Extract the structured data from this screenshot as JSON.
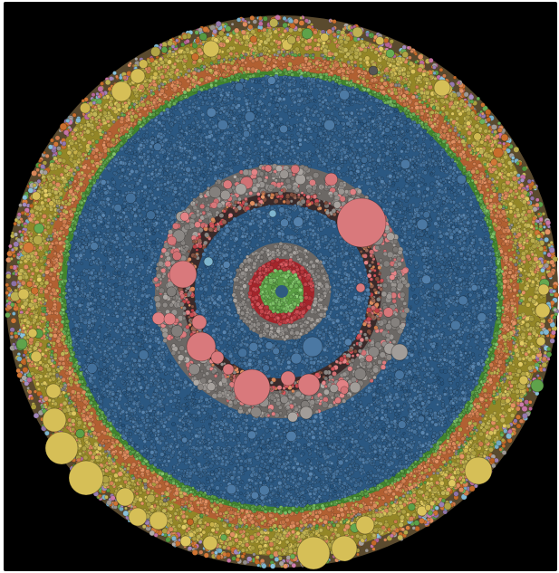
{
  "diagram": {
    "type": "circle-packing",
    "background": "#000000",
    "palette": {
      "blue": "#3d6a94",
      "blue_light": "#4b78a3",
      "grey": "#8a8683",
      "grey_light": "#a29d99",
      "pink": "#d9797c",
      "red": "#c24349",
      "green": "#5fa34b",
      "green_bright": "#74b85e",
      "gold": "#b6a94a",
      "gold_light": "#d6bf57",
      "orange": "#d9885a",
      "orange_dark": "#c96f2e",
      "purple": "#9a7fb3",
      "cyan": "#7fb6cf",
      "magenta": "#c170a0"
    },
    "rings": [
      {
        "name": "outer-mixed-band",
        "color": "orange_dark"
      },
      {
        "name": "outer-gold-band",
        "color": "gold"
      },
      {
        "name": "orange-band",
        "color": "orange"
      },
      {
        "name": "green-edge-band",
        "color": "green"
      },
      {
        "name": "main-blue-field",
        "color": "blue"
      },
      {
        "name": "mid-grey-band",
        "color": "grey"
      },
      {
        "name": "mid-pink-band",
        "color": "pink"
      },
      {
        "name": "inner-blue-band",
        "color": "blue"
      },
      {
        "name": "inner-grey-band",
        "color": "grey"
      },
      {
        "name": "core-red-band",
        "color": "red"
      },
      {
        "name": "core-green-cluster",
        "color": "green_bright"
      }
    ]
  }
}
